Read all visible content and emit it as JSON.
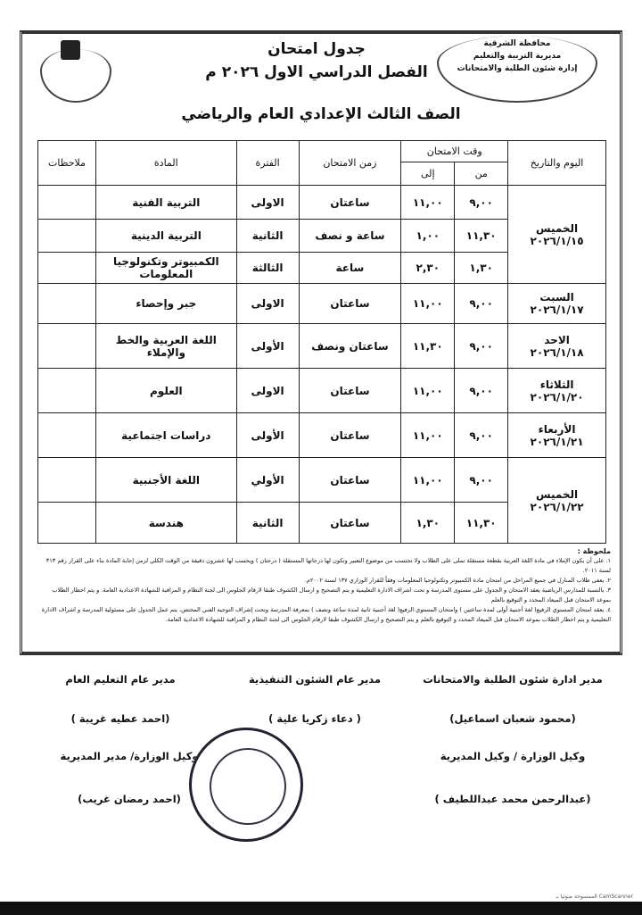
{
  "header": {
    "ministry_lines": [
      "محافظة الشرقية",
      "مديرية التربية والتعليم",
      "إدارة شئون الطلبة والامتحانات"
    ],
    "title": "جدول امتحان",
    "term": "الفصل الدراسي الاول ٢٠٢٦ م",
    "grade": "الصف الثالث الإعدادي العام والرياضي"
  },
  "table": {
    "headers": {
      "day": "اليوم والتاريخ",
      "time": "وقت الامتحان",
      "from": "من",
      "to": "إلى",
      "duration": "زمن الامتحان",
      "period": "الفترة",
      "subject": "المادة",
      "notes": "ملاحظات"
    },
    "days": [
      {
        "day": "الخميس",
        "date": "٢٠٢٦/١/١٥",
        "rows": [
          {
            "from": "٩,٠٠",
            "to": "١١,٠٠",
            "duration": "ساعتان",
            "period": "الاولى",
            "subject": "التربية الفنية"
          },
          {
            "from": "١١,٣٠",
            "to": "١,٠٠",
            "duration": "ساعة و نصف",
            "period": "الثانية",
            "subject": "التربية الدينية"
          },
          {
            "from": "١,٣٠",
            "to": "٢,٣٠",
            "duration": "ساعة",
            "period": "الثالثة",
            "subject": "الكمبيوتر وتكنولوجيا المعلومات"
          }
        ]
      },
      {
        "day": "السبت",
        "date": "٢٠٢٦/١/١٧",
        "rows": [
          {
            "from": "٩,٠٠",
            "to": "١١,٠٠",
            "duration": "ساعتان",
            "period": "الاولى",
            "subject": "جبر وإحصاء"
          }
        ]
      },
      {
        "day": "الاحد",
        "date": "٢٠٢٦/١/١٨",
        "rows": [
          {
            "from": "٩,٠٠",
            "to": "١١,٣٠",
            "duration": "ساعتان ونصف",
            "period": "الأولى",
            "subject": "اللغة العربية والخط والإملاء"
          }
        ]
      },
      {
        "day": "الثلاثاء",
        "date": "٢٠٢٦/١/٢٠",
        "rows": [
          {
            "from": "٩,٠٠",
            "to": "١١,٠٠",
            "duration": "ساعتان",
            "period": "الاولى",
            "subject": "العلوم"
          }
        ]
      },
      {
        "day": "الأربعاء",
        "date": "٢٠٢٦/١/٢١",
        "rows": [
          {
            "from": "٩,٠٠",
            "to": "١١,٠٠",
            "duration": "ساعتان",
            "period": "الأولى",
            "subject": "دراسات اجتماعية"
          }
        ]
      },
      {
        "day": "الخميس",
        "date": "٢٠٢٦/١/٢٢",
        "rows": [
          {
            "from": "٩,٠٠",
            "to": "١١,٠٠",
            "duration": "ساعتان",
            "period": "الأولي",
            "subject": "اللغة الأجنبية"
          },
          {
            "from": "١١,٣٠",
            "to": "١,٣٠",
            "duration": "ساعتان",
            "period": "الثانية",
            "subject": "هندسة"
          }
        ]
      }
    ]
  },
  "notes": {
    "heading": "ملحوظة :",
    "items": [
      "١. على أن يكون الإملاء في مادة اللغة العربية بقطعة مستقلة تملى على الطلاب ولا تحتسب من موضوع التعبير وتكون لها درجاتها المستقلة ( درجتان ) ويحسب لها عشرون دقيقة من الوقت الكلي لزمن إجابة المادة بناء على القرار رقم ٣١٣ لسنة ٢٠١١.",
      "٢. يعفى طلاب المنازل في جميع المراحل من امتحان مادة الكمبيوتر وتكنولوجيا المعلومات وفقاً للقرار الوزاري ١٣٧ لسنة ٢٠٠٢م.",
      "٣. بالنسبة للمدارس الرياضية يعقد الامتحان و الجدول على مستوى المدرسة و تحت اشراف الادارة التعليمية و يتم التصحيح و ارسال الكشوف طبقا لارقام الجلوس الى لجنة النظام و المراقبة للشهادة الاعدادية العامة. و يتم اخطار الطلاب بموعد الامتحان قبل الميعاد المحدد و التوقيع بالعلم",
      "٤. يعقد امتحان المستوي الرفيع( لغة أجنبية أولى لمدة ساعتين ) وامتحان المستوي الرفيع( لغة أجنبية ثانية لمدة ساعة ونصف ) بمعرفة المدرسة وتحت إشراف التوجيه الفني المختص، يتم عمل الجدول على مسئولية المدرسة و اشراف الادارة التعليمية و يتم اخطار الطلاب بموعد الامتحان قبل الميعاد المحدد و التوقيع بالعلم و يتم التصحيح و ارسال الكشوف طبقا لارقام الجلوس الى لجنة النظام و المراقبة للشهادة الاعدادية العامة."
    ]
  },
  "signatures": [
    {
      "title": "مدير ادارة شئون الطلبة والامتحانات",
      "name": "(محمود شعبان اسماعيل)"
    },
    {
      "title": "مدير عام الشئون التنفيذية",
      "name": "( دعاء زكريا علية )"
    },
    {
      "title": "مدير عام التعليم العام",
      "name": "(احمد عطيه غريبة )"
    },
    {
      "title": "وكيل الوزارة / وكيل المديرية",
      "name": "(عبدالرحمن محمد عبداللطيف )"
    },
    {
      "title": "وكيل الوزارة/ مدير المديرية",
      "name": "(احمد رمضان غريب)"
    }
  ],
  "footer": "الممسوحة ضوئيا بـ CamScanner"
}
